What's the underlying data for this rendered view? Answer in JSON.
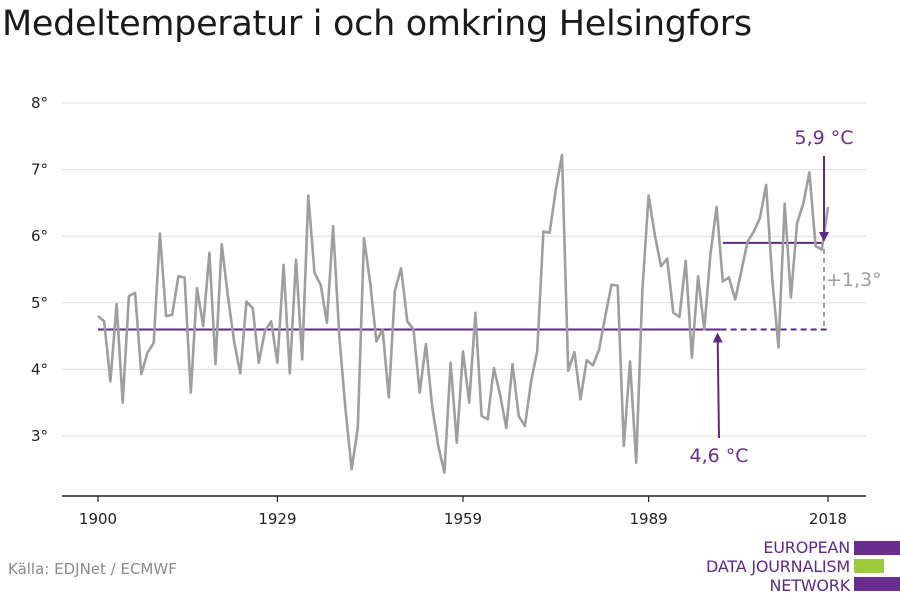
{
  "title": "Medeltemperatur i och omkring Helsingfors",
  "source": "Källa: EDJNet / ECMWF",
  "logo": {
    "lines": [
      "EUROPEAN",
      "DATA JOURNALISM",
      "NETWORK"
    ],
    "colors": [
      "#6a2c91",
      "#9ccc3c",
      "#6a2c91"
    ]
  },
  "chart_data": {
    "type": "line",
    "title": "Medeltemperatur i och omkring Helsingfors",
    "xlabel": "",
    "ylabel": "",
    "xlim": [
      1900,
      2018
    ],
    "ylim": [
      2.1,
      8.1
    ],
    "x_ticks": [
      1900,
      1929,
      1959,
      1989,
      2018
    ],
    "x_tick_labels": [
      "1900",
      "1929",
      "1959",
      "1989",
      "2018"
    ],
    "y_ticks": [
      3,
      4,
      5,
      6,
      7,
      8
    ],
    "y_tick_labels": [
      "3°",
      "4°",
      "5°",
      "6°",
      "7°",
      "8°"
    ],
    "grid": true,
    "series": [
      {
        "color": "#9e9e9e",
        "x_start": 1900,
        "values": [
          4.8,
          4.72,
          3.82,
          4.98,
          3.5,
          5.1,
          5.15,
          3.93,
          4.25,
          4.4,
          6.04,
          4.8,
          4.82,
          5.4,
          5.38,
          3.65,
          5.22,
          4.65,
          5.75,
          4.08,
          5.88,
          5.1,
          4.42,
          3.94,
          5.02,
          4.92,
          4.1,
          4.58,
          4.72,
          4.1,
          5.57,
          3.94,
          5.65,
          4.15,
          6.61,
          5.45,
          5.27,
          4.7,
          6.15,
          4.5,
          3.4,
          2.5,
          3.12,
          5.97,
          5.3,
          4.42,
          4.6,
          3.58,
          5.18,
          5.52,
          4.72,
          4.6,
          3.65,
          4.38,
          3.45,
          2.85,
          2.45,
          4.1,
          2.9,
          4.27,
          3.5,
          4.85,
          3.3,
          3.25,
          4.02,
          3.62,
          3.12,
          4.08,
          3.3,
          3.15,
          3.82,
          4.27,
          6.07,
          6.05,
          6.7,
          7.22,
          3.98,
          4.26,
          3.55,
          4.14,
          4.06,
          4.3,
          4.8,
          5.27,
          5.26,
          2.85,
          4.12,
          2.6,
          5.2,
          6.61,
          6.02,
          5.55,
          5.66,
          4.85,
          4.79,
          5.63,
          4.18,
          5.4,
          4.6,
          5.74,
          6.44,
          5.32,
          5.38,
          5.05,
          5.48,
          5.92,
          6.07,
          6.27,
          6.77,
          5.35,
          4.33,
          6.49,
          5.08,
          6.2,
          6.49,
          6.96,
          5.85,
          5.8,
          6.44
        ]
      }
    ],
    "reference_lines": [
      {
        "value": 4.6,
        "x_from": 1900,
        "x_to_solid": 2000,
        "x_to": 2018,
        "style_after": "dashed",
        "color": "#5c2a86"
      },
      {
        "value": 5.9,
        "x_from": 2001,
        "x_to": 2018,
        "color": "#5c2a86"
      }
    ],
    "annotations": [
      {
        "text": "5,9 °C",
        "color": "#6a2c91",
        "arrow_target": [
          2018,
          5.9
        ]
      },
      {
        "text": "4,6 °C",
        "color": "#6a2c91",
        "arrow_target": [
          2000,
          4.6
        ]
      },
      {
        "text": "+1,3°",
        "color": "#9e9e9e",
        "bracket": [
          4.6,
          5.9
        ]
      }
    ]
  }
}
